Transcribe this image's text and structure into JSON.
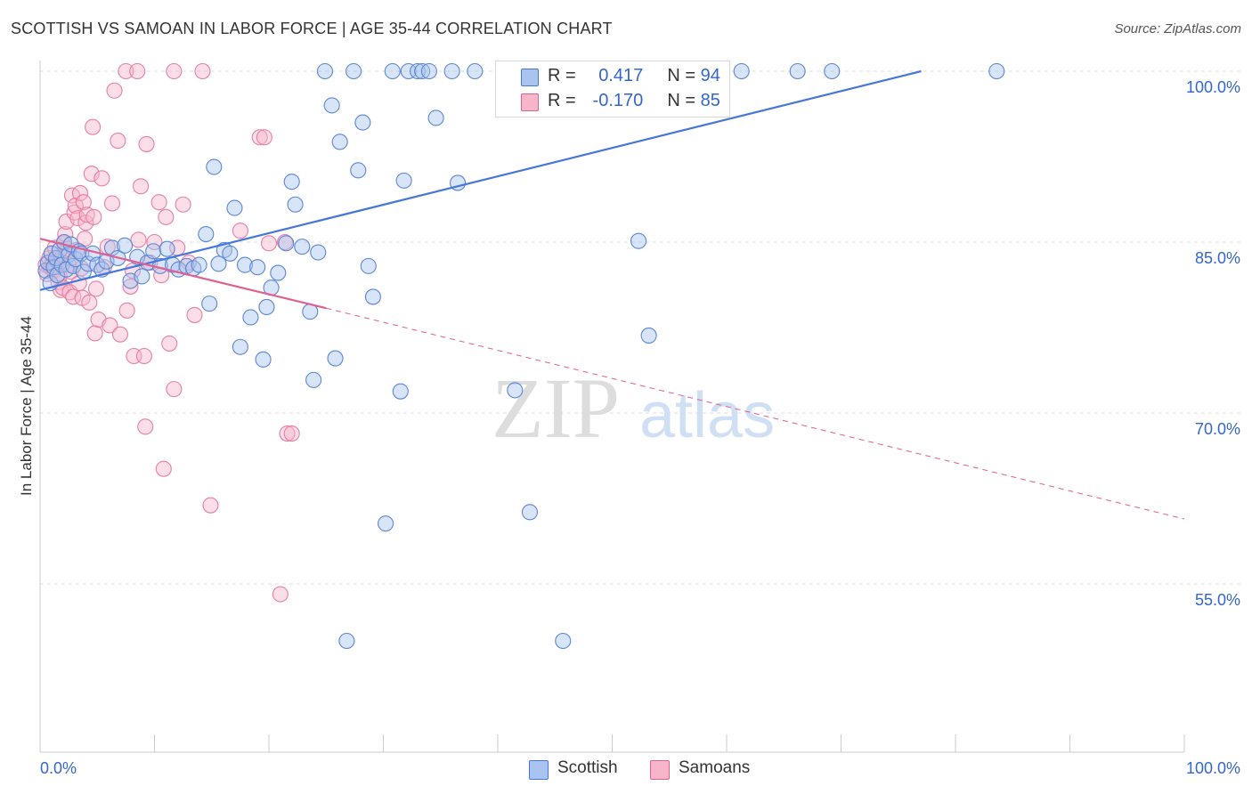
{
  "title": "SCOTTISH VS SAMOAN IN LABOR FORCE | AGE 35-44 CORRELATION CHART",
  "source": "Source: ZipAtlas.com",
  "watermark": {
    "zip": "ZIP",
    "atlas": "atlas"
  },
  "legend_top": {
    "row1": {
      "r_label": "R =",
      "r_value": "0.417",
      "n_label": "N =",
      "n_value": "94"
    },
    "row2": {
      "r_label": "R =",
      "r_value": "-0.170",
      "n_label": "N =",
      "n_value": "85"
    }
  },
  "legend_bottom": {
    "scottish": "Scottish",
    "samoans": "Samoans"
  },
  "colors": {
    "blue": "#4477dd",
    "pink": "#e06090",
    "blue_fill": "#a9c4ee",
    "pink_fill": "#f7b5ca",
    "axis_label": "#3366cc"
  },
  "chart_data": {
    "type": "scatter",
    "title": "SCOTTISH VS SAMOAN IN LABOR FORCE | AGE 35-44 CORRELATION CHART",
    "xlabel": "",
    "ylabel": "In Labor Force | Age 35-44",
    "xlim": [
      0,
      100
    ],
    "ylim": [
      40,
      101
    ],
    "x_tick_labels": [
      "0.0%",
      "100.0%"
    ],
    "y_ticks": [
      55,
      70,
      85,
      100
    ],
    "y_tick_labels": [
      "55.0%",
      "70.0%",
      "85.0%",
      "100.0%"
    ],
    "grid": true,
    "series": [
      {
        "name": "Scottish",
        "color": "#4477dd",
        "r": 0.417,
        "n": 94,
        "trend": {
          "x0": 0,
          "y0": 80.8,
          "x1": 77,
          "y1": 100.0,
          "dashed_to": 77
        },
        "points": [
          [
            0.5,
            82.5
          ],
          [
            0.7,
            83.2
          ],
          [
            0.9,
            81.4
          ],
          [
            1.0,
            84.0
          ],
          [
            1.2,
            82.8
          ],
          [
            1.4,
            83.6
          ],
          [
            1.5,
            82.1
          ],
          [
            1.7,
            84.3
          ],
          [
            1.9,
            83.0
          ],
          [
            2.1,
            85.0
          ],
          [
            2.3,
            82.6
          ],
          [
            2.5,
            83.9
          ],
          [
            2.7,
            84.8
          ],
          [
            2.9,
            82.9
          ],
          [
            3.1,
            83.5
          ],
          [
            3.4,
            84.2
          ],
          [
            3.6,
            84.0
          ],
          [
            3.8,
            82.4
          ],
          [
            4.2,
            83.1
          ],
          [
            4.6,
            84.0
          ],
          [
            5.0,
            83.0
          ],
          [
            5.4,
            82.6
          ],
          [
            5.8,
            83.3
          ],
          [
            6.3,
            84.5
          ],
          [
            6.8,
            83.6
          ],
          [
            7.4,
            84.7
          ],
          [
            7.9,
            81.6
          ],
          [
            8.5,
            83.7
          ],
          [
            8.9,
            82.0
          ],
          [
            9.4,
            83.2
          ],
          [
            9.9,
            84.2
          ],
          [
            10.5,
            82.9
          ],
          [
            11.1,
            84.4
          ],
          [
            11.6,
            83.0
          ],
          [
            12.1,
            82.6
          ],
          [
            12.8,
            82.9
          ],
          [
            13.4,
            82.7
          ],
          [
            13.9,
            83.0
          ],
          [
            14.5,
            85.7
          ],
          [
            14.8,
            79.6
          ],
          [
            15.2,
            91.6
          ],
          [
            15.6,
            83.1
          ],
          [
            16.1,
            84.3
          ],
          [
            16.6,
            84.0
          ],
          [
            17.0,
            88.0
          ],
          [
            17.5,
            75.8
          ],
          [
            17.9,
            83.0
          ],
          [
            18.4,
            78.4
          ],
          [
            19.0,
            82.8
          ],
          [
            19.5,
            74.7
          ],
          [
            19.8,
            79.3
          ],
          [
            20.2,
            81.0
          ],
          [
            20.8,
            82.3
          ],
          [
            21.5,
            84.9
          ],
          [
            22.0,
            90.3
          ],
          [
            22.3,
            88.3
          ],
          [
            22.9,
            84.6
          ],
          [
            23.6,
            78.9
          ],
          [
            23.9,
            72.9
          ],
          [
            24.3,
            84.1
          ],
          [
            24.9,
            100.0
          ],
          [
            25.5,
            97.0
          ],
          [
            25.8,
            74.8
          ],
          [
            26.2,
            93.8
          ],
          [
            26.8,
            50.0
          ],
          [
            27.4,
            100.0
          ],
          [
            27.8,
            91.3
          ],
          [
            28.2,
            95.5
          ],
          [
            28.7,
            82.9
          ],
          [
            29.1,
            80.2
          ],
          [
            30.2,
            60.3
          ],
          [
            30.8,
            100.0
          ],
          [
            31.5,
            71.9
          ],
          [
            31.8,
            90.4
          ],
          [
            32.2,
            100.0
          ],
          [
            33.0,
            100.0
          ],
          [
            33.4,
            100.0
          ],
          [
            34.0,
            100.0
          ],
          [
            34.6,
            95.9
          ],
          [
            36.0,
            100.0
          ],
          [
            36.5,
            90.2
          ],
          [
            38.0,
            100.0
          ],
          [
            41.5,
            72.0
          ],
          [
            42.8,
            61.3
          ],
          [
            45.7,
            50.0
          ],
          [
            47.5,
            100.0
          ],
          [
            52.3,
            85.1
          ],
          [
            53.2,
            76.8
          ],
          [
            59.0,
            100.0
          ],
          [
            61.3,
            100.0
          ],
          [
            66.2,
            100.0
          ],
          [
            69.2,
            100.0
          ],
          [
            83.6,
            100.0
          ],
          [
            58.0,
            100.0
          ]
        ]
      },
      {
        "name": "Samoans",
        "color": "#e06090",
        "r": -0.17,
        "n": 85,
        "trend": {
          "x0": 0,
          "y0": 85.3,
          "x1": 25,
          "y1": 79.2,
          "dashed_to": 100,
          "y_end": 60.7
        },
        "points": [
          [
            0.5,
            83.0
          ],
          [
            0.6,
            82.2
          ],
          [
            0.8,
            83.6
          ],
          [
            0.9,
            82.8
          ],
          [
            1.0,
            84.0
          ],
          [
            1.1,
            83.1
          ],
          [
            1.2,
            82.5
          ],
          [
            1.3,
            84.5
          ],
          [
            1.4,
            82.9
          ],
          [
            1.5,
            83.3
          ],
          [
            1.6,
            81.5
          ],
          [
            1.7,
            82.0
          ],
          [
            1.8,
            80.8
          ],
          [
            1.9,
            83.7
          ],
          [
            2.0,
            81.0
          ],
          [
            2.1,
            84.9
          ],
          [
            2.2,
            85.7
          ],
          [
            2.3,
            86.8
          ],
          [
            2.4,
            84.4
          ],
          [
            2.5,
            83.0
          ],
          [
            2.6,
            80.6
          ],
          [
            2.7,
            82.4
          ],
          [
            2.8,
            89.1
          ],
          [
            2.9,
            80.2
          ],
          [
            3.0,
            87.6
          ],
          [
            3.1,
            88.2
          ],
          [
            3.2,
            84.3
          ],
          [
            3.3,
            87.1
          ],
          [
            3.4,
            81.4
          ],
          [
            3.5,
            89.3
          ],
          [
            3.6,
            82.7
          ],
          [
            3.7,
            80.1
          ],
          [
            3.8,
            88.5
          ],
          [
            3.9,
            85.3
          ],
          [
            4.0,
            86.7
          ],
          [
            4.1,
            87.4
          ],
          [
            4.3,
            79.7
          ],
          [
            4.5,
            91.0
          ],
          [
            4.6,
            95.1
          ],
          [
            4.7,
            87.2
          ],
          [
            4.8,
            77.0
          ],
          [
            4.9,
            80.9
          ],
          [
            5.1,
            78.2
          ],
          [
            5.4,
            90.6
          ],
          [
            5.6,
            82.8
          ],
          [
            5.9,
            84.6
          ],
          [
            6.1,
            77.7
          ],
          [
            6.3,
            88.4
          ],
          [
            6.5,
            98.3
          ],
          [
            6.8,
            93.9
          ],
          [
            7.0,
            76.9
          ],
          [
            7.5,
            100.0
          ],
          [
            7.6,
            79.0
          ],
          [
            7.9,
            81.1
          ],
          [
            8.1,
            82.5
          ],
          [
            8.2,
            75.0
          ],
          [
            8.5,
            100.0
          ],
          [
            8.6,
            85.2
          ],
          [
            8.8,
            89.9
          ],
          [
            9.1,
            75.0
          ],
          [
            9.2,
            68.8
          ],
          [
            9.3,
            93.6
          ],
          [
            9.6,
            83.2
          ],
          [
            10.0,
            85.0
          ],
          [
            10.4,
            88.5
          ],
          [
            10.6,
            82.1
          ],
          [
            10.8,
            65.1
          ],
          [
            11.0,
            87.2
          ],
          [
            11.3,
            76.1
          ],
          [
            11.7,
            72.1
          ],
          [
            11.7,
            100.0
          ],
          [
            12.0,
            84.5
          ],
          [
            12.5,
            88.3
          ],
          [
            13.0,
            83.2
          ],
          [
            13.5,
            78.6
          ],
          [
            14.2,
            100.0
          ],
          [
            14.9,
            61.9
          ],
          [
            17.5,
            86.0
          ],
          [
            19.2,
            94.2
          ],
          [
            19.6,
            94.2
          ],
          [
            20.0,
            84.9
          ],
          [
            21.0,
            54.1
          ],
          [
            21.4,
            85.0
          ],
          [
            21.6,
            68.2
          ],
          [
            22.0,
            68.2
          ]
        ]
      }
    ]
  }
}
